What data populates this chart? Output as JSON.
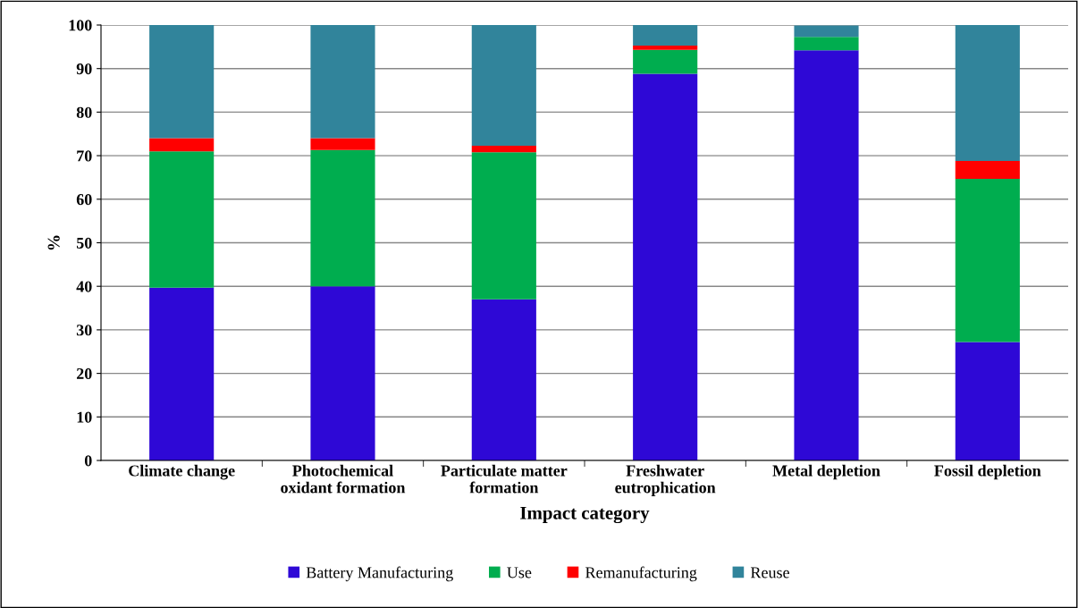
{
  "chart_data": {
    "type": "bar",
    "stacked": true,
    "xlabel": "Impact category",
    "ylabel": "%",
    "categories": [
      "Climate change",
      "Photochemical\noxidant formation",
      "Particulate matter\nformation",
      "Freshwater\neutrophication",
      "Metal depletion",
      "Fossil depletion"
    ],
    "series": [
      {
        "name": "Battery Manufacturing",
        "color": "#2e08d6",
        "values": [
          39.7,
          40.0,
          37.0,
          88.8,
          94.2,
          27.2
        ]
      },
      {
        "name": "Use",
        "color": "#00ad4f",
        "values": [
          31.3,
          31.3,
          33.8,
          5.5,
          3.1,
          37.5
        ]
      },
      {
        "name": "Remanufacturing",
        "color": "#ff0000",
        "values": [
          3.0,
          2.7,
          1.5,
          1.0,
          null,
          4.1
        ]
      },
      {
        "name": "Reuse",
        "color": "#31849b",
        "values": [
          26.0,
          26.0,
          27.7,
          4.7,
          2.6,
          31.2
        ]
      }
    ],
    "ylim": [
      0,
      100
    ],
    "yticks": [
      0,
      10,
      20,
      30,
      40,
      50,
      60,
      70,
      80,
      90,
      100
    ],
    "grid": "y",
    "legend": "bottom"
  }
}
